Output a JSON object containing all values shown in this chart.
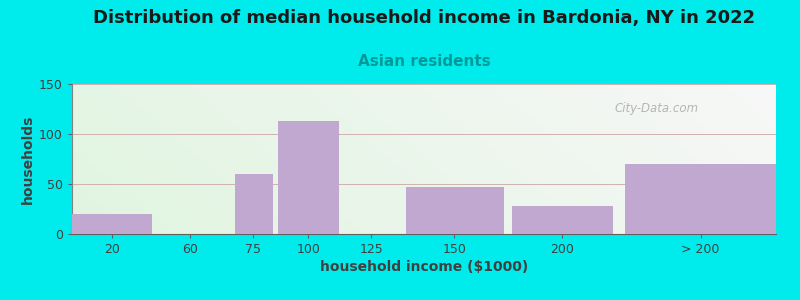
{
  "title": "Distribution of median household income in Bardonia, NY in 2022",
  "subtitle": "Asian residents",
  "xlabel": "household income ($1000)",
  "ylabel": "households",
  "background_color": "#00ECEC",
  "bar_color": "#C0A8D0",
  "ylim": [
    0,
    150
  ],
  "yticks": [
    0,
    50,
    100,
    150
  ],
  "xtick_labels": [
    "20",
    "60",
    "75",
    "100",
    "125",
    "150",
    "200",
    "> 200"
  ],
  "bar_lefts": [
    0,
    35,
    65,
    82,
    108,
    133,
    175,
    220
  ],
  "bar_rights": [
    32,
    63,
    80,
    106,
    131,
    172,
    215,
    280
  ],
  "values": [
    20,
    0,
    60,
    113,
    0,
    47,
    28,
    70
  ],
  "title_fontsize": 13,
  "subtitle_fontsize": 11,
  "axis_label_fontsize": 10,
  "tick_fontsize": 9,
  "watermark_text": "City-Data.com"
}
